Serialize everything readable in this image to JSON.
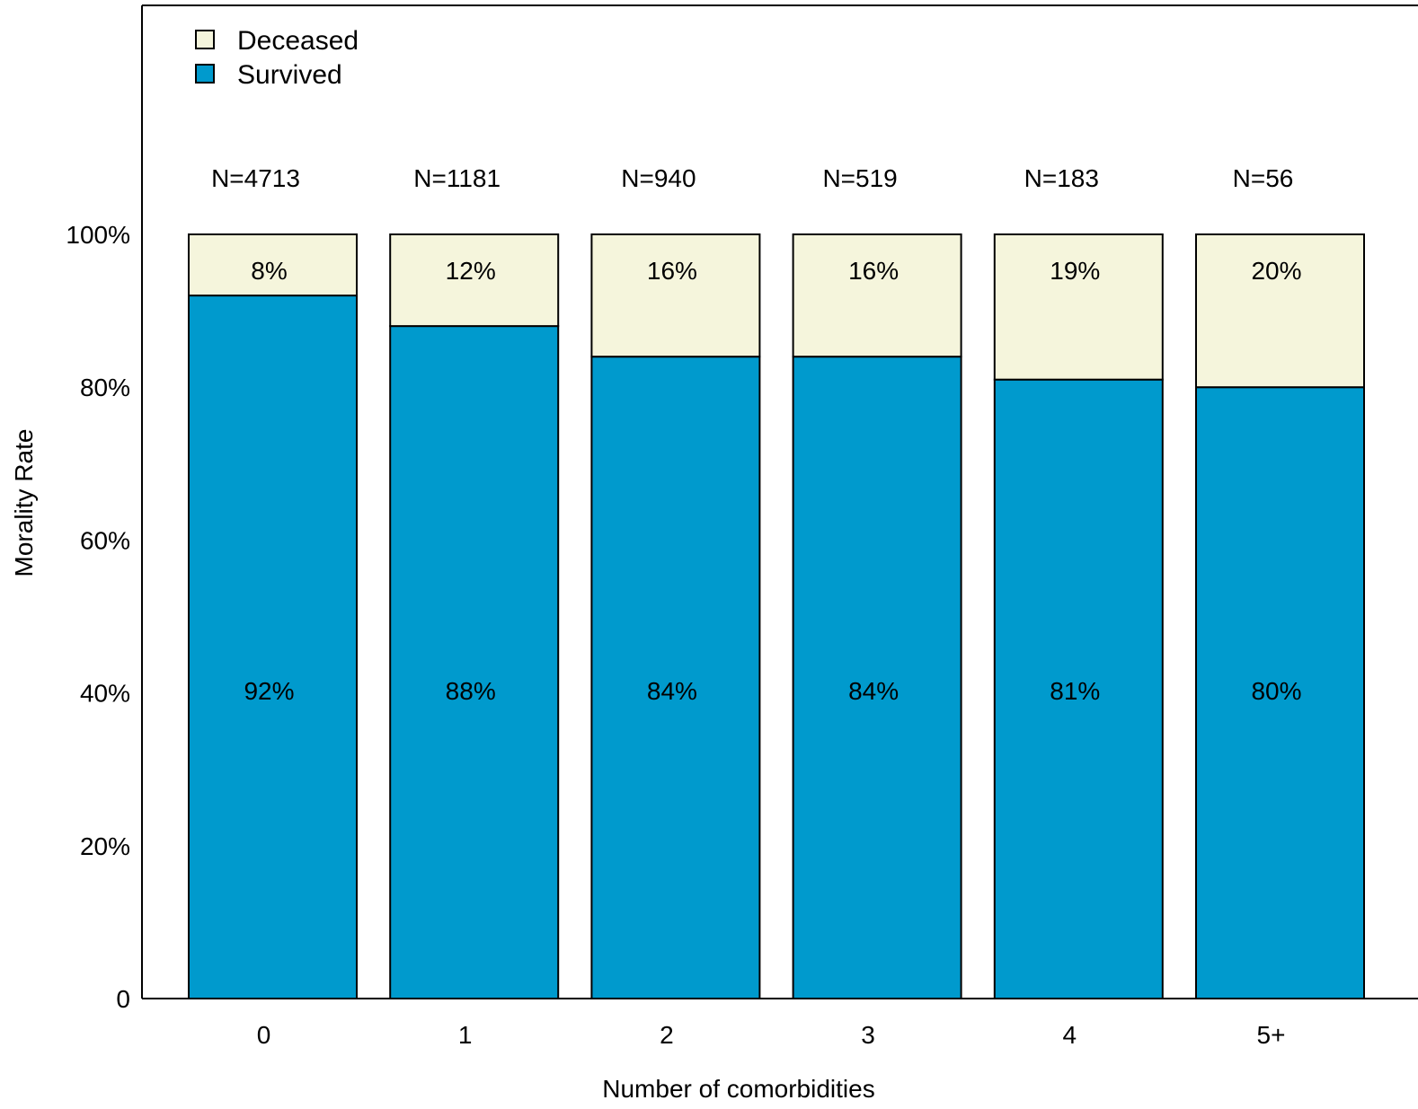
{
  "chart_data": {
    "type": "bar",
    "stacked": true,
    "title": "",
    "xlabel": "Number of comorbidities",
    "ylabel": "Morality Rate",
    "categories": [
      "0",
      "1",
      "2",
      "3",
      "4",
      "5+"
    ],
    "n_labels": [
      "N=4713",
      "N=1181",
      "N=940",
      "N=519",
      "N=183",
      "N=56"
    ],
    "series": [
      {
        "name": "Survived",
        "values": [
          92,
          88,
          84,
          84,
          81,
          80
        ],
        "labels": [
          "92%",
          "88%",
          "84%",
          "84%",
          "81%",
          "80%"
        ],
        "color": "#009acd"
      },
      {
        "name": "Deceased",
        "values": [
          8,
          12,
          16,
          16,
          19,
          20
        ],
        "labels": [
          "8%",
          "12%",
          "16%",
          "16%",
          "19%",
          "20%"
        ],
        "color": "#f5f5dc"
      }
    ],
    "ylim": [
      0,
      100
    ],
    "yticks": [
      0,
      20,
      40,
      60,
      80,
      100
    ],
    "ytick_labels": [
      "0",
      "20%",
      "40%",
      "60%",
      "80%",
      "100%"
    ],
    "grid": false,
    "legend": {
      "placement": "top-left",
      "entries": [
        "Deceased",
        "Survived"
      ]
    }
  }
}
